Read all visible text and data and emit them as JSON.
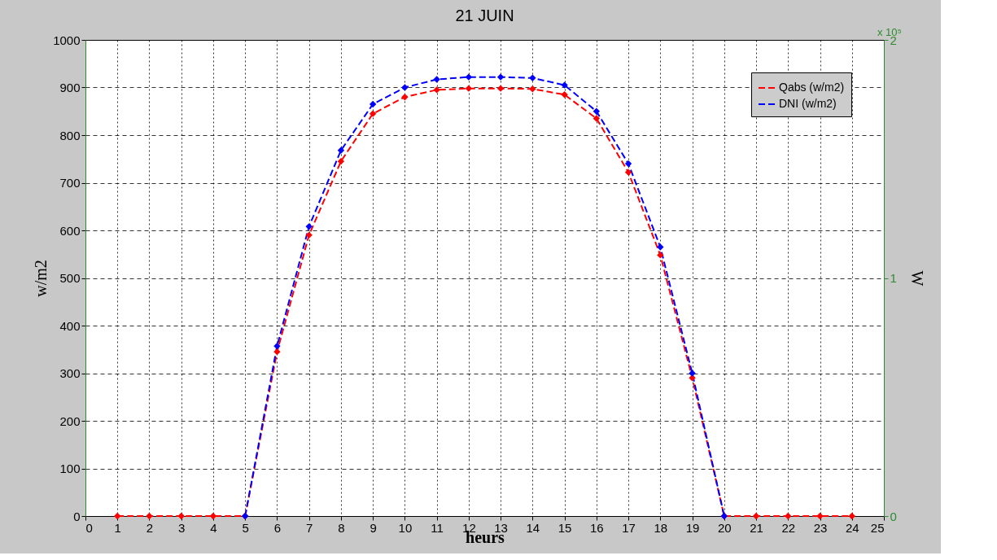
{
  "chart_data": {
    "type": "line",
    "title": "21 JUIN",
    "xlabel": "heurs",
    "ylabel": "w/m2",
    "y2label": "W",
    "x": [
      1,
      2,
      3,
      4,
      5,
      6,
      7,
      8,
      9,
      10,
      11,
      12,
      13,
      14,
      15,
      16,
      17,
      18,
      19,
      20,
      21,
      22,
      23,
      24
    ],
    "series": [
      {
        "name": "Qabs (w/m2)",
        "color": "#ff0000",
        "values": [
          0,
          0,
          0,
          0,
          0,
          345,
          590,
          745,
          845,
          880,
          895,
          898,
          898,
          897,
          885,
          835,
          722,
          548,
          290,
          0,
          0,
          0,
          0,
          0
        ]
      },
      {
        "name": "DNI (w/m2)",
        "color": "#0000ff",
        "values": [
          null,
          null,
          null,
          null,
          0,
          357,
          608,
          768,
          865,
          900,
          917,
          922,
          922,
          920,
          905,
          850,
          740,
          565,
          300,
          0,
          null,
          null,
          null,
          null
        ]
      }
    ],
    "xlim": [
      0,
      25
    ],
    "xticks": [
      0,
      1,
      2,
      3,
      4,
      5,
      6,
      7,
      8,
      9,
      10,
      11,
      12,
      13,
      14,
      15,
      16,
      17,
      18,
      19,
      20,
      21,
      22,
      23,
      24,
      25
    ],
    "ylim": [
      0,
      1000
    ],
    "yticks": [
      0,
      100,
      200,
      300,
      400,
      500,
      600,
      700,
      800,
      900,
      1000
    ],
    "y2lim": [
      0,
      2
    ],
    "y2ticks": [
      0,
      1,
      2
    ],
    "annotations": [
      "x 10⁵"
    ],
    "grid": true,
    "legend": "top right",
    "marker": "diamond",
    "line_style": "dashed"
  }
}
